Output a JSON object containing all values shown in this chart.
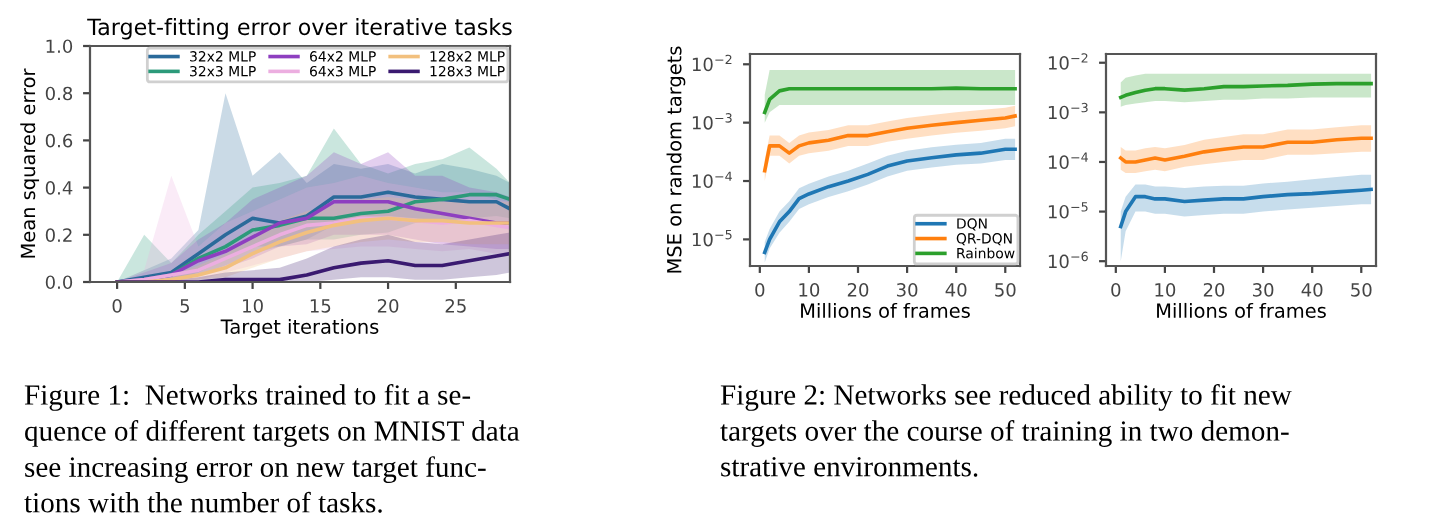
{
  "chart_data": [
    {
      "type": "line",
      "title": "Target-fitting error over iterative tasks",
      "xlabel": "Target iterations",
      "ylabel": "Mean squared error",
      "x": [
        0,
        2,
        4,
        6,
        8,
        10,
        12,
        14,
        16,
        18,
        20,
        22,
        24,
        26,
        28,
        29
      ],
      "xlim": [
        -2,
        29
      ],
      "ylim": [
        0,
        1
      ],
      "xticks": [
        0,
        5,
        10,
        15,
        20,
        25
      ],
      "yticks": [
        {
          "value": 0,
          "label": "0.0"
        },
        0.2,
        0.4,
        0.6,
        0.8,
        {
          "value": 1,
          "label": "1.0"
        }
      ],
      "legend": "top right",
      "grid": false,
      "marker": "none",
      "line_style": "solid",
      "series": [
        {
          "name": "32x2 MLP",
          "color": "#2a6a9a",
          "values": [
            0,
            0.02,
            0.04,
            0.12,
            0.2,
            0.27,
            0.25,
            0.28,
            0.36,
            0.36,
            0.38,
            0.36,
            0.35,
            0.34,
            0.34,
            0.31
          ],
          "lower": [
            0,
            0,
            0,
            0.04,
            0.1,
            0.15,
            0.15,
            0.18,
            0.24,
            0.26,
            0.28,
            0.27,
            0.26,
            0.26,
            0.25,
            0.24
          ],
          "upper": [
            0,
            0.05,
            0.1,
            0.22,
            0.8,
            0.45,
            0.55,
            0.42,
            0.5,
            0.48,
            0.5,
            0.46,
            0.5,
            0.48,
            0.45,
            0.42
          ]
        },
        {
          "name": "32x3 MLP",
          "color": "#2c9a7a",
          "values": [
            0,
            0.01,
            0.03,
            0.1,
            0.15,
            0.22,
            0.24,
            0.27,
            0.27,
            0.29,
            0.3,
            0.34,
            0.35,
            0.37,
            0.37,
            0.35
          ],
          "lower": [
            0,
            0,
            0,
            0.03,
            0.07,
            0.12,
            0.15,
            0.18,
            0.18,
            0.2,
            0.21,
            0.25,
            0.26,
            0.27,
            0.28,
            0.27
          ],
          "upper": [
            0,
            0.2,
            0.08,
            0.2,
            0.3,
            0.4,
            0.42,
            0.45,
            0.65,
            0.5,
            0.46,
            0.5,
            0.52,
            0.57,
            0.48,
            0.42
          ]
        },
        {
          "name": "64x2 MLP",
          "color": "#8e3fc0",
          "values": [
            0,
            0.01,
            0.03,
            0.09,
            0.13,
            0.19,
            0.25,
            0.27,
            0.34,
            0.34,
            0.34,
            0.31,
            0.29,
            0.27,
            0.25,
            0.25
          ],
          "lower": [
            0,
            0,
            0,
            0.03,
            0.06,
            0.1,
            0.15,
            0.16,
            0.2,
            0.2,
            0.2,
            0.18,
            0.16,
            0.15,
            0.14,
            0.14
          ],
          "upper": [
            0,
            0.04,
            0.08,
            0.18,
            0.25,
            0.35,
            0.4,
            0.45,
            0.55,
            0.5,
            0.55,
            0.45,
            0.45,
            0.4,
            0.38,
            0.36
          ]
        },
        {
          "name": "64x3 MLP",
          "color": "#ecaee0",
          "values": [
            0,
            0.01,
            0.03,
            0.05,
            0.1,
            0.15,
            0.2,
            0.24,
            0.25,
            0.27,
            0.27,
            0.26,
            0.25,
            0.26,
            0.24,
            0.23
          ],
          "lower": [
            0,
            0,
            0,
            0.01,
            0.04,
            0.07,
            0.1,
            0.13,
            0.14,
            0.15,
            0.15,
            0.14,
            0.13,
            0.14,
            0.12,
            0.12
          ],
          "upper": [
            0,
            0.05,
            0.45,
            0.15,
            0.25,
            0.3,
            0.35,
            0.4,
            0.42,
            0.45,
            0.42,
            0.4,
            0.38,
            0.38,
            0.35,
            0.34
          ]
        },
        {
          "name": "128x2 MLP",
          "color": "#f2c07e",
          "values": [
            0,
            0,
            0.01,
            0.03,
            0.06,
            0.12,
            0.17,
            0.21,
            0.24,
            0.26,
            0.27,
            0.26,
            0.26,
            0.25,
            0.25,
            0.25
          ],
          "lower": [
            0,
            0,
            0,
            0.01,
            0.02,
            0.06,
            0.1,
            0.13,
            0.15,
            0.17,
            0.18,
            0.17,
            0.17,
            0.16,
            0.16,
            0.16
          ],
          "upper": [
            0,
            0.01,
            0.03,
            0.07,
            0.12,
            0.2,
            0.26,
            0.3,
            0.33,
            0.35,
            0.36,
            0.35,
            0.35,
            0.34,
            0.34,
            0.34
          ]
        },
        {
          "name": "128x3 MLP",
          "color": "#3a1a70",
          "values": [
            0,
            0,
            0,
            0,
            0.01,
            0.01,
            0.01,
            0.03,
            0.06,
            0.08,
            0.09,
            0.07,
            0.07,
            0.09,
            0.11,
            0.12
          ],
          "lower": [
            0,
            0,
            0,
            0,
            0,
            0,
            0,
            0,
            0.01,
            0.02,
            0.02,
            0.01,
            0.01,
            0.02,
            0.03,
            0.04
          ],
          "upper": [
            0,
            0,
            0.01,
            0.02,
            0.04,
            0.05,
            0.06,
            0.1,
            0.15,
            0.18,
            0.2,
            0.17,
            0.16,
            0.18,
            0.2,
            0.21
          ]
        }
      ],
      "annotations": [
        "Figure 1:  Networks trained to fit a se-\nquence of different targets on MNIST data\nsee increasing error on new target func-\ntions with the number of tasks."
      ]
    },
    {
      "type": "line",
      "xlabel": "Millions of frames",
      "ylabel": "MSE on random targets",
      "log": "y",
      "x": [
        1,
        2,
        4,
        6,
        8,
        10,
        14,
        18,
        22,
        26,
        30,
        35,
        40,
        45,
        50,
        52
      ],
      "xlim": [
        -2,
        53
      ],
      "ylim": [
        3.5e-06,
        0.015
      ],
      "xticks": [
        0,
        10,
        20,
        30,
        40,
        50
      ],
      "yticks": [
        {
          "value": 1e-05,
          "label": "10$^{−5}$"
        },
        {
          "value": 0.0001,
          "label": "10$^{−4}$"
        },
        {
          "value": 0.001,
          "label": "10$^{−3}$"
        },
        {
          "value": 0.01,
          "label": "10$^{−2}$"
        }
      ],
      "legend": "bottom right",
      "grid": false,
      "marker": "none",
      "line_style": "solid",
      "series": [
        {
          "name": "DQN",
          "color": "#1f77b4",
          "values": [
            6e-06,
            1e-05,
            2e-05,
            3e-05,
            5e-05,
            6e-05,
            8e-05,
            0.0001,
            0.00013,
            0.00018,
            0.00022,
            0.00025,
            0.00028,
            0.0003,
            0.00035,
            0.00035
          ],
          "lower": [
            4e-06,
            7e-06,
            1.3e-05,
            2e-05,
            3.3e-05,
            4e-05,
            5.3e-05,
            6.7e-05,
            8.7e-05,
            0.00012,
            0.00015,
            0.00017,
            0.00019,
            0.0002,
            0.00023,
            0.00023
          ],
          "upper": [
            9e-06,
            1.5e-05,
            3e-05,
            4.5e-05,
            7.5e-05,
            9e-05,
            0.00012,
            0.00015,
            0.0002,
            0.00027,
            0.00033,
            0.00038,
            0.00042,
            0.00045,
            0.00053,
            0.00053
          ]
        },
        {
          "name": "QR-DQN",
          "color": "#ff7f0e",
          "values": [
            0.00015,
            0.0004,
            0.0004,
            0.0003,
            0.0004,
            0.00045,
            0.0005,
            0.0006,
            0.0006,
            0.0007,
            0.0008,
            0.0009,
            0.001,
            0.0011,
            0.0012,
            0.0013
          ],
          "lower": [
            0.0001,
            0.00027,
            0.00027,
            0.0002,
            0.00027,
            0.0003,
            0.00033,
            0.0004,
            0.0004,
            0.00047,
            0.00053,
            0.0006,
            0.00067,
            0.00073,
            0.0008,
            0.00087
          ],
          "upper": [
            0.00023,
            0.0006,
            0.0006,
            0.00045,
            0.0006,
            0.00068,
            0.00075,
            0.0009,
            0.0009,
            0.00105,
            0.0012,
            0.00135,
            0.0015,
            0.00165,
            0.0018,
            0.00195
          ]
        },
        {
          "name": "Rainbow",
          "color": "#2ca02c",
          "values": [
            0.0015,
            0.0025,
            0.0035,
            0.0038,
            0.0038,
            0.0038,
            0.0038,
            0.0038,
            0.0038,
            0.0038,
            0.0038,
            0.0038,
            0.0039,
            0.0038,
            0.0038,
            0.0038
          ],
          "lower": [
            0.001,
            0.0015,
            0.002,
            0.002,
            0.002,
            0.002,
            0.002,
            0.002,
            0.002,
            0.002,
            0.002,
            0.002,
            0.002,
            0.002,
            0.002,
            0.002
          ],
          "upper": [
            0.003,
            0.008,
            0.008,
            0.008,
            0.008,
            0.008,
            0.008,
            0.008,
            0.008,
            0.008,
            0.008,
            0.008,
            0.008,
            0.008,
            0.008,
            0.008
          ]
        }
      ],
      "annotations": [
        "Figure 2: Networks see reduced ability to fit new\ntargets over the course of training in two demon-\nstrative environments."
      ]
    },
    {
      "type": "line",
      "xlabel": "Millions of frames",
      "log": "y",
      "x": [
        1,
        2,
        4,
        6,
        8,
        10,
        14,
        18,
        22,
        26,
        30,
        35,
        40,
        45,
        50,
        52
      ],
      "xlim": [
        -2,
        53
      ],
      "ylim": [
        8e-07,
        0.015
      ],
      "xticks": [
        0,
        10,
        20,
        30,
        40,
        50
      ],
      "yticks": [
        {
          "value": 1e-06,
          "label": "10$^{−6}$"
        },
        {
          "value": 1e-05,
          "label": "10$^{−5}$"
        },
        {
          "value": 0.0001,
          "label": "10$^{−4}$"
        },
        {
          "value": 0.001,
          "label": "10$^{−3}$"
        },
        {
          "value": 0.01,
          "label": "10$^{−2}$"
        }
      ],
      "grid": false,
      "marker": "none",
      "line_style": "solid",
      "series": [
        {
          "color": "#1f77b4",
          "values": [
            5e-06,
            1e-05,
            2e-05,
            2e-05,
            1.8e-05,
            1.8e-05,
            1.6e-05,
            1.7e-05,
            1.8e-05,
            1.8e-05,
            2e-05,
            2.2e-05,
            2.3e-05,
            2.5e-05,
            2.7e-05,
            2.8e-05
          ],
          "lower": [
            1e-06,
            4e-06,
            1e-05,
            1e-05,
            9e-06,
            9e-06,
            8e-06,
            8.5e-06,
            9e-06,
            9e-06,
            1e-05,
            1.1e-05,
            1.2e-05,
            1.3e-05,
            1.4e-05,
            1.4e-05
          ],
          "upper": [
            1e-05,
            2e-05,
            3.5e-05,
            3.5e-05,
            3.2e-05,
            3.2e-05,
            3e-05,
            3.2e-05,
            3.3e-05,
            3.3e-05,
            3.7e-05,
            4e-05,
            4.5e-05,
            5e-05,
            5.5e-05,
            5.5e-05
          ]
        },
        {
          "color": "#ff7f0e",
          "values": [
            0.00012,
            0.0001,
            0.0001,
            0.00011,
            0.00012,
            0.00011,
            0.00013,
            0.00016,
            0.00018,
            0.0002,
            0.0002,
            0.00025,
            0.00025,
            0.00028,
            0.0003,
            0.0003
          ],
          "lower": [
            7e-05,
            6e-05,
            6e-05,
            6.5e-05,
            7e-05,
            6.5e-05,
            8e-05,
            9e-05,
            0.0001,
            0.00011,
            0.00011,
            0.00014,
            0.00014,
            0.00015,
            0.00016,
            0.00016
          ],
          "upper": [
            0.0002,
            0.00017,
            0.00017,
            0.00019,
            0.0002,
            0.00019,
            0.00022,
            0.00028,
            0.00032,
            0.00036,
            0.00036,
            0.00045,
            0.00045,
            0.0005,
            0.00055,
            0.00055
          ]
        },
        {
          "color": "#2ca02c",
          "values": [
            0.002,
            0.0022,
            0.0025,
            0.0028,
            0.003,
            0.003,
            0.0028,
            0.003,
            0.0033,
            0.0033,
            0.0034,
            0.0035,
            0.0037,
            0.0038,
            0.0038,
            0.0038
          ],
          "lower": [
            0.0013,
            0.0014,
            0.0015,
            0.0016,
            0.0017,
            0.0017,
            0.0016,
            0.0017,
            0.0018,
            0.0018,
            0.0019,
            0.0019,
            0.002,
            0.002,
            0.002,
            0.002
          ],
          "upper": [
            0.004,
            0.005,
            0.0055,
            0.006,
            0.006,
            0.006,
            0.006,
            0.006,
            0.006,
            0.006,
            0.006,
            0.006,
            0.006,
            0.006,
            0.006,
            0.006
          ]
        }
      ]
    }
  ]
}
